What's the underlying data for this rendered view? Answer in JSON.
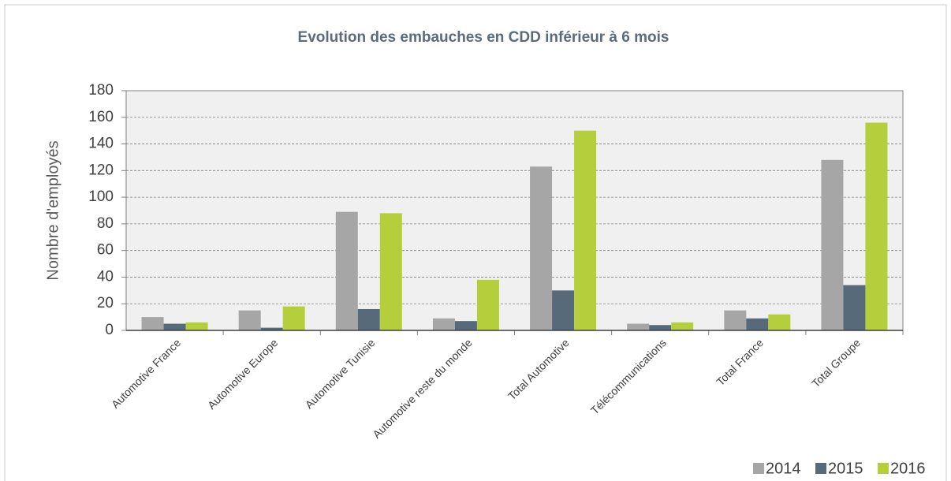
{
  "chart_data": {
    "type": "bar",
    "title": "Evolution des embauches en CDD inférieur à 6 mois",
    "y_label": "Nombre d'employés",
    "categories": [
      "Automotive France",
      "Automotive Europe",
      "Automotive Tunisie",
      "Automotive reste du monde",
      "Total Automotive",
      "Télécommunications",
      "Total France",
      "Total Groupe"
    ],
    "series": [
      {
        "name": "2014",
        "color": "#a6a6a6",
        "values": [
          10,
          15,
          89,
          9,
          123,
          5,
          15,
          128
        ]
      },
      {
        "name": "2015",
        "color": "#566a7a",
        "values": [
          5,
          2,
          16,
          7,
          30,
          4,
          9,
          34
        ]
      },
      {
        "name": "2016",
        "color": "#b5cf3c",
        "values": [
          6,
          18,
          88,
          38,
          150,
          6,
          12,
          156
        ]
      }
    ],
    "ylim": [
      0,
      180
    ],
    "yticks": [
      0,
      20,
      40,
      60,
      80,
      100,
      120,
      140,
      160,
      180
    ],
    "grid": true,
    "legend": "bottom-right"
  }
}
